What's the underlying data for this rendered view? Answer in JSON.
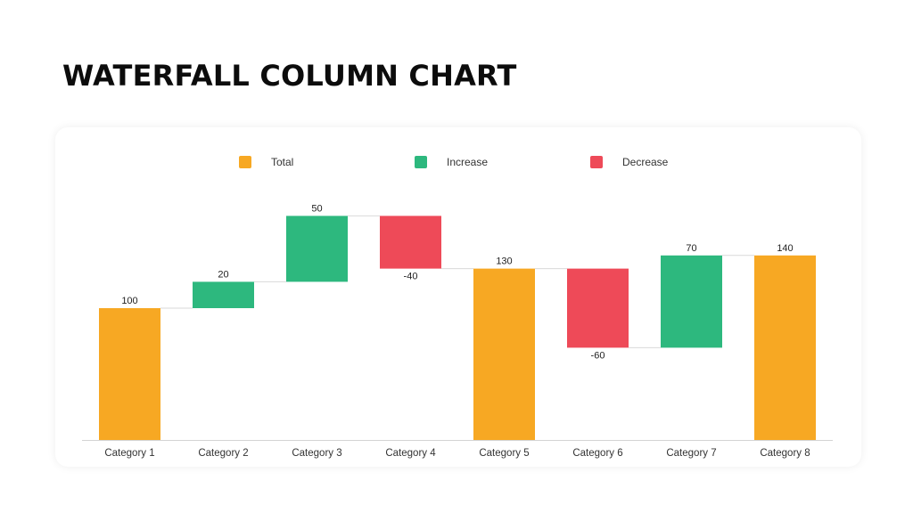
{
  "page": {
    "title": "WATERFALL COLUMN CHART"
  },
  "legend": [
    {
      "label": "Total",
      "color": "#F7A823"
    },
    {
      "label": "Increase",
      "color": "#2DB87E"
    },
    {
      "label": "Decrease",
      "color": "#EE4A58"
    }
  ],
  "chart_data": {
    "type": "bar",
    "subtype": "waterfall",
    "title": "",
    "xlabel": "",
    "ylabel": "",
    "ylim": [
      0,
      150
    ],
    "grid": false,
    "legend_position": "top",
    "categories": [
      "Category 1",
      "Category 2",
      "Category 3",
      "Category 4",
      "Category 5",
      "Category 6",
      "Category 7",
      "Category 8"
    ],
    "values": [
      100,
      20,
      50,
      -40,
      130,
      -60,
      70,
      140
    ],
    "kinds": [
      "total",
      "increase",
      "increase",
      "decrease",
      "total",
      "decrease",
      "increase",
      "total"
    ],
    "data_labels": [
      "100",
      "20",
      "50",
      "-40",
      "130",
      "-60",
      "70",
      "140"
    ],
    "colors": {
      "total": "#F7A823",
      "increase": "#2DB87E",
      "decrease": "#EE4A58"
    }
  }
}
